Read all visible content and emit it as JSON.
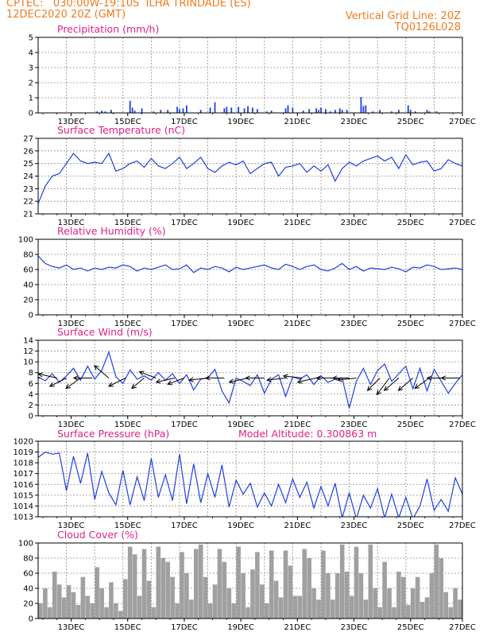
{
  "header": {
    "line1_left": "CPTEC:   030:00W-19:10S  ILHA TRINDADE (ES)",
    "line2_left": "12DEC2020 20Z (GMT)",
    "line1_right": "Vertical Grid Line: 20Z",
    "line2_right": "TQ0126L028"
  },
  "colors": {
    "header": "#f07a1e",
    "title": "#e0208a",
    "series": "#1f3fe0",
    "cloud": "#a0a0a0",
    "wind_vector": "#000000"
  },
  "x_axis": {
    "start_label": "12DEC2020 20Z",
    "hours_total": 360,
    "ticks": [
      {
        "label": "13DEC",
        "hour": 28
      },
      {
        "label": "15DEC",
        "hour": 76
      },
      {
        "label": "17DEC",
        "hour": 124
      },
      {
        "label": "19DEC",
        "hour": 172
      },
      {
        "label": "21DEC",
        "hour": 220
      },
      {
        "label": "23DEC",
        "hour": 268
      },
      {
        "label": "25DEC",
        "hour": 316
      },
      {
        "label": "27DEC",
        "hour": 364
      }
    ]
  },
  "chart_data": [
    {
      "type": "bar",
      "title": "Precipitation (mm/h)",
      "ylim": [
        0,
        5
      ],
      "yticks": [
        0,
        1,
        2,
        3,
        4,
        5
      ],
      "grid": true,
      "series": [
        {
          "x_hours": [
            50,
            54,
            57,
            62,
            78,
            80,
            82,
            88,
            98,
            104,
            110,
            118,
            120,
            123,
            126,
            138,
            146,
            150,
            158,
            160,
            164,
            170,
            175,
            178,
            182,
            186,
            194,
            198,
            210,
            212,
            216,
            225,
            230,
            236,
            238,
            240,
            244,
            248,
            252,
            256,
            258,
            262,
            274,
            276,
            278,
            284,
            290,
            300,
            306,
            314,
            316,
            320,
            330,
            332,
            338
          ],
          "values": [
            0.1,
            0.15,
            0.1,
            0.2,
            0.8,
            0.35,
            0.15,
            0.3,
            0.1,
            0.2,
            0.2,
            0.4,
            0.25,
            0.3,
            0.5,
            0.2,
            0.35,
            0.7,
            0.3,
            0.4,
            0.35,
            0.4,
            0.3,
            0.45,
            0.35,
            0.25,
            0.1,
            0.15,
            0.3,
            0.5,
            0.35,
            0.15,
            0.25,
            0.3,
            0.2,
            0.35,
            0.25,
            0.1,
            0.2,
            0.3,
            0.2,
            0.2,
            1.05,
            0.45,
            0.5,
            0.1,
            0.2,
            0.1,
            0.2,
            0.5,
            0.2,
            0.1,
            0.2,
            0.1,
            0.1
          ]
        }
      ]
    },
    {
      "type": "line",
      "title": "Surface Temperature (nC)",
      "ylim": [
        21,
        27
      ],
      "yticks": [
        21,
        22,
        23,
        24,
        25,
        26,
        27
      ],
      "grid": true,
      "series": [
        {
          "x_hours": [
            0,
            6,
            12,
            18,
            24,
            30,
            36,
            42,
            48,
            54,
            60,
            66,
            72,
            78,
            84,
            90,
            96,
            102,
            108,
            114,
            120,
            126,
            132,
            138,
            144,
            150,
            156,
            162,
            168,
            174,
            180,
            186,
            192,
            198,
            204,
            210,
            216,
            222,
            228,
            234,
            240,
            246,
            252,
            258,
            264,
            270,
            276,
            282,
            288,
            294,
            300,
            306,
            312,
            318,
            324,
            330,
            336,
            342,
            348,
            354,
            360
          ],
          "values": [
            21.8,
            23.2,
            24.0,
            24.2,
            25.0,
            25.8,
            25.2,
            25.0,
            25.1,
            25.0,
            25.8,
            24.4,
            24.6,
            25.0,
            25.2,
            24.7,
            25.4,
            24.8,
            24.6,
            25.0,
            25.5,
            24.6,
            25.0,
            25.5,
            24.6,
            24.3,
            24.8,
            25.1,
            24.9,
            25.2,
            24.2,
            24.6,
            25.0,
            25.1,
            24.0,
            24.7,
            24.8,
            25.0,
            24.3,
            24.8,
            24.4,
            24.9,
            23.6,
            24.6,
            25.1,
            24.8,
            25.2,
            25.4,
            25.6,
            25.2,
            25.5,
            24.6,
            25.7,
            24.9,
            25.1,
            25.2,
            24.4,
            24.6,
            25.3,
            25.0,
            24.8
          ]
        }
      ]
    },
    {
      "type": "line",
      "title": "Relative Humidity (%)",
      "ylim": [
        0,
        100
      ],
      "yticks": [
        0,
        20,
        40,
        60,
        80,
        100
      ],
      "grid": true,
      "series": [
        {
          "x_hours": [
            0,
            6,
            12,
            18,
            24,
            30,
            36,
            42,
            48,
            54,
            60,
            66,
            72,
            78,
            84,
            90,
            96,
            102,
            108,
            114,
            120,
            126,
            132,
            138,
            144,
            150,
            156,
            162,
            168,
            174,
            180,
            186,
            192,
            198,
            204,
            210,
            216,
            222,
            228,
            234,
            240,
            246,
            252,
            258,
            264,
            270,
            276,
            282,
            288,
            294,
            300,
            306,
            312,
            318,
            324,
            330,
            336,
            342,
            348,
            354,
            360
          ],
          "values": [
            78,
            68,
            64,
            62,
            66,
            60,
            62,
            58,
            62,
            60,
            63,
            62,
            66,
            64,
            58,
            62,
            60,
            63,
            66,
            60,
            61,
            66,
            56,
            62,
            60,
            64,
            62,
            57,
            63,
            60,
            62,
            64,
            66,
            62,
            60,
            67,
            64,
            60,
            64,
            66,
            60,
            58,
            62,
            68,
            60,
            64,
            58,
            62,
            61,
            60,
            63,
            61,
            57,
            63,
            62,
            66,
            64,
            60,
            61,
            62,
            60
          ]
        }
      ]
    },
    {
      "type": "line",
      "title": "Surface Wind (m/s)",
      "ylim": [
        0,
        14
      ],
      "yticks": [
        0,
        2,
        4,
        6,
        8,
        10,
        12,
        14
      ],
      "grid": true,
      "series": [
        {
          "x_hours": [
            0,
            6,
            12,
            18,
            24,
            30,
            36,
            42,
            48,
            54,
            60,
            66,
            72,
            78,
            84,
            90,
            96,
            102,
            108,
            114,
            120,
            126,
            132,
            138,
            144,
            150,
            156,
            162,
            168,
            174,
            180,
            186,
            192,
            198,
            204,
            210,
            216,
            222,
            228,
            234,
            240,
            246,
            252,
            258,
            264,
            270,
            276,
            282,
            288,
            294,
            300,
            306,
            312,
            318,
            324,
            330,
            336,
            342,
            348,
            354,
            360
          ],
          "values": [
            7.2,
            6.5,
            7.8,
            6.2,
            7.4,
            8.8,
            6.6,
            9.2,
            6.8,
            8.4,
            11.8,
            7.2,
            6.0,
            8.5,
            6.8,
            7.4,
            6.6,
            8.0,
            6.6,
            7.8,
            6.0,
            7.6,
            4.8,
            6.8,
            7.0,
            8.6,
            4.6,
            2.4,
            7.0,
            6.4,
            5.6,
            7.6,
            4.2,
            6.8,
            7.6,
            3.6,
            7.2,
            6.8,
            7.6,
            5.8,
            7.4,
            6.2,
            6.8,
            7.0,
            1.4,
            6.4,
            8.8,
            5.8,
            8.4,
            9.6,
            6.4,
            7.8,
            9.2,
            5.0,
            8.8,
            4.6,
            8.6,
            6.4,
            4.2,
            6.0,
            7.6
          ]
        }
      ],
      "vectors": [
        {
          "x_hour": 2,
          "u": 1.0,
          "v": 0.0
        },
        {
          "x_hour": 16,
          "u": 0.9,
          "v": -0.2
        },
        {
          "x_hour": 24,
          "u": 0.8,
          "v": 0.4
        },
        {
          "x_hour": 36,
          "u": 0.7,
          "v": 0.5
        },
        {
          "x_hour": 46,
          "u": 0.9,
          "v": 0.0
        },
        {
          "x_hour": 60,
          "u": 0.7,
          "v": -0.6
        },
        {
          "x_hour": 74,
          "u": 0.8,
          "v": 0.4
        },
        {
          "x_hour": 90,
          "u": 0.6,
          "v": 0.5
        },
        {
          "x_hour": 100,
          "u": 0.8,
          "v": -0.3
        },
        {
          "x_hour": 116,
          "u": 0.9,
          "v": 0.2
        },
        {
          "x_hour": 124,
          "u": 0.8,
          "v": 0.3
        },
        {
          "x_hour": 144,
          "u": 0.9,
          "v": 0.1
        },
        {
          "x_hour": 158,
          "u": 0.9,
          "v": 0.0
        },
        {
          "x_hour": 178,
          "u": 0.9,
          "v": 0.2
        },
        {
          "x_hour": 192,
          "u": 0.9,
          "v": 0.0
        },
        {
          "x_hour": 210,
          "u": 0.9,
          "v": 0.1
        },
        {
          "x_hour": 224,
          "u": 0.9,
          "v": -0.1
        },
        {
          "x_hour": 236,
          "u": 0.9,
          "v": 0.2
        },
        {
          "x_hour": 252,
          "u": 0.9,
          "v": 0.0
        },
        {
          "x_hour": 264,
          "u": 0.8,
          "v": 0.0
        },
        {
          "x_hour": 270,
          "u": 0.9,
          "v": 0.1
        },
        {
          "x_hour": 290,
          "u": 0.6,
          "v": 0.6
        },
        {
          "x_hour": 298,
          "u": 0.6,
          "v": 0.8
        },
        {
          "x_hour": 306,
          "u": 0.7,
          "v": 0.6
        },
        {
          "x_hour": 318,
          "u": 0.7,
          "v": 0.6
        },
        {
          "x_hour": 332,
          "u": 0.7,
          "v": 0.5
        },
        {
          "x_hour": 346,
          "u": 0.9,
          "v": 0.0
        },
        {
          "x_hour": 358,
          "u": 0.9,
          "v": 0.0
        }
      ]
    },
    {
      "type": "line",
      "title": "Surface Pressure (hPa)",
      "annotation": "Model Altitude: 0.300863 m",
      "ylim": [
        1013,
        1020
      ],
      "yticks": [
        1013,
        1014,
        1015,
        1016,
        1017,
        1018,
        1019,
        1020
      ],
      "grid": true,
      "series": [
        {
          "x_hours": [
            0,
            6,
            12,
            18,
            24,
            30,
            36,
            42,
            48,
            54,
            60,
            66,
            72,
            78,
            84,
            90,
            96,
            102,
            108,
            114,
            120,
            126,
            132,
            138,
            144,
            150,
            156,
            162,
            168,
            174,
            180,
            186,
            192,
            198,
            204,
            210,
            216,
            222,
            228,
            234,
            240,
            246,
            252,
            258,
            264,
            270,
            276,
            282,
            288,
            294,
            300,
            306,
            312,
            318,
            324,
            330,
            336,
            342,
            348,
            354,
            360
          ],
          "values": [
            1018.5,
            1019.0,
            1018.8,
            1018.9,
            1015.4,
            1018.6,
            1016.1,
            1018.9,
            1014.6,
            1017.2,
            1015.2,
            1014.1,
            1017.3,
            1014.1,
            1016.7,
            1014.5,
            1018.4,
            1014.8,
            1016.9,
            1014.5,
            1018.8,
            1014.2,
            1017.9,
            1014.3,
            1017.0,
            1014.8,
            1017.8,
            1013.9,
            1016.4,
            1015.1,
            1016.1,
            1013.9,
            1015.2,
            1014.0,
            1016.0,
            1014.3,
            1016.5,
            1014.8,
            1016.2,
            1013.8,
            1015.8,
            1014.0,
            1016.1,
            1012.9,
            1015.2,
            1012.8,
            1015.0,
            1013.8,
            1015.6,
            1012.9,
            1015.1,
            1012.9,
            1014.8,
            1012.8,
            1014.0,
            1016.5,
            1013.6,
            1014.6,
            1013.5,
            1016.6,
            1015.1
          ]
        }
      ]
    },
    {
      "type": "bar",
      "title": "Cloud Cover (%)",
      "ylim": [
        0,
        100
      ],
      "yticks": [
        0,
        20,
        40,
        60,
        80,
        100
      ],
      "grid": true,
      "series": [
        {
          "x_hours": [
            2,
            6,
            10,
            14,
            18,
            22,
            26,
            30,
            34,
            38,
            42,
            46,
            50,
            54,
            58,
            62,
            66,
            70,
            74,
            78,
            82,
            86,
            90,
            94,
            98,
            102,
            106,
            110,
            114,
            118,
            122,
            126,
            130,
            134,
            138,
            142,
            146,
            150,
            154,
            158,
            162,
            166,
            170,
            174,
            178,
            182,
            186,
            190,
            194,
            198,
            202,
            206,
            210,
            214,
            218,
            222,
            226,
            230,
            234,
            238,
            242,
            246,
            250,
            254,
            258,
            262,
            266,
            270,
            274,
            278,
            282,
            286,
            290,
            294,
            298,
            302,
            306,
            310,
            314,
            318,
            322,
            326,
            330,
            334,
            338,
            342,
            346,
            350,
            354,
            358
          ],
          "values": [
            20,
            40,
            15,
            62,
            45,
            28,
            44,
            35,
            18,
            55,
            30,
            20,
            68,
            40,
            15,
            48,
            20,
            10,
            52,
            95,
            85,
            30,
            92,
            50,
            15,
            95,
            80,
            75,
            55,
            20,
            88,
            60,
            25,
            92,
            98,
            55,
            20,
            45,
            92,
            75,
            40,
            20,
            95,
            60,
            15,
            65,
            88,
            45,
            20,
            90,
            50,
            28,
            90,
            70,
            30,
            30,
            92,
            80,
            40,
            25,
            90,
            60,
            25,
            60,
            98,
            62,
            30,
            95,
            60,
            25,
            98,
            40,
            15,
            75,
            40,
            15,
            62,
            55,
            18,
            40,
            55,
            22,
            28,
            60,
            98,
            80,
            35,
            15,
            40,
            25
          ]
        }
      ]
    }
  ]
}
